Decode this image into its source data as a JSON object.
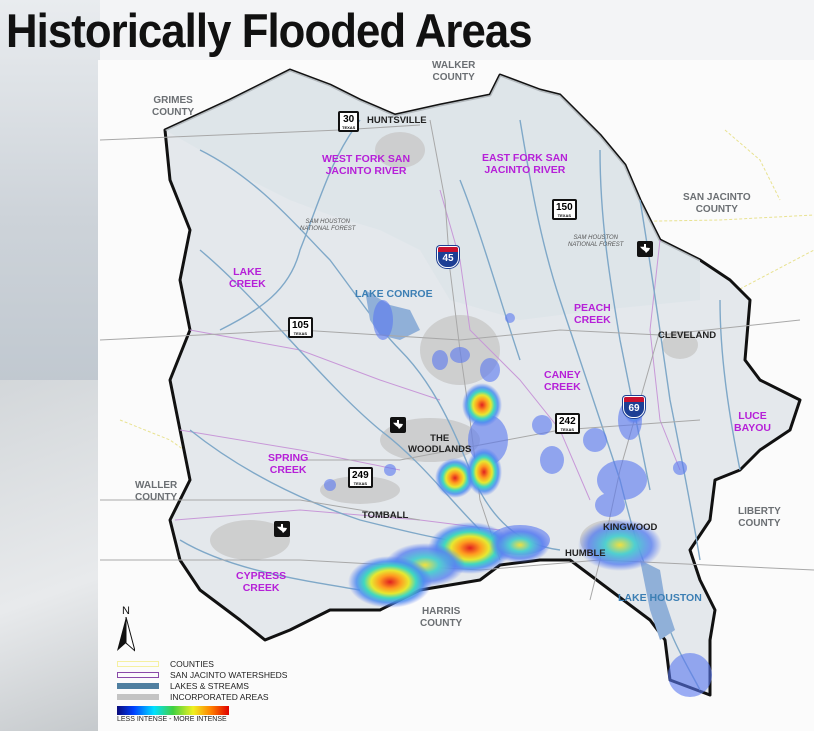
{
  "title": "Historically Flooded Areas",
  "watersheds": [
    "WEST FORK SAN\nJACINTO RIVER",
    "EAST FORK SAN\nJACINTO RIVER",
    "LAKE\nCREEK",
    "PEACH\nCREEK",
    "CANEY\nCREEK",
    "LUCE\nBAYOU",
    "SPRING\nCREEK",
    "CYPRESS\nCREEK"
  ],
  "counties": [
    "GRIMES\nCOUNTY",
    "WALKER\nCOUNTY",
    "SAN JACINTO\nCOUNTY",
    "WALLER\nCOUNTY",
    "LIBERTY\nCOUNTY",
    "HARRIS\nCOUNTY"
  ],
  "cities": [
    "HUNTSVILLE",
    "CLEVELAND",
    "THE\nWOODLANDS",
    "TOMBALL",
    "KINGWOOD",
    "HUMBLE"
  ],
  "lakes": [
    "LAKE CONROE",
    "LAKE HOUSTON"
  ],
  "forests": [
    "SAM HOUSTON\nNATIONAL FOREST",
    "SAM HOUSTON\nNATIONAL FOREST"
  ],
  "highways": {
    "interstates": [
      "45",
      "69"
    ],
    "state": [
      "30",
      "150",
      "105",
      "242",
      "249"
    ],
    "state_sub": "TEXAS"
  },
  "north_label": "N",
  "legend": {
    "items": [
      {
        "label": "COUNTIES",
        "color": "#f5f0a0"
      },
      {
        "label": "SAN JACINTO WATERSHEDS",
        "color": "#8a4aa8"
      },
      {
        "label": "LAKES & STREAMS",
        "color": "#4f7fa0"
      },
      {
        "label": "INCORPORATED AREAS",
        "color": "#c4c4c4"
      }
    ],
    "ramp_label": "LESS INTENSE - MORE INTENSE"
  },
  "colors": {
    "watershed_label": "#b620d8",
    "boundary": "#111111",
    "stream": "#6f9fc4",
    "heat_low": "#5a78f0",
    "heat_high": "#e02020"
  }
}
